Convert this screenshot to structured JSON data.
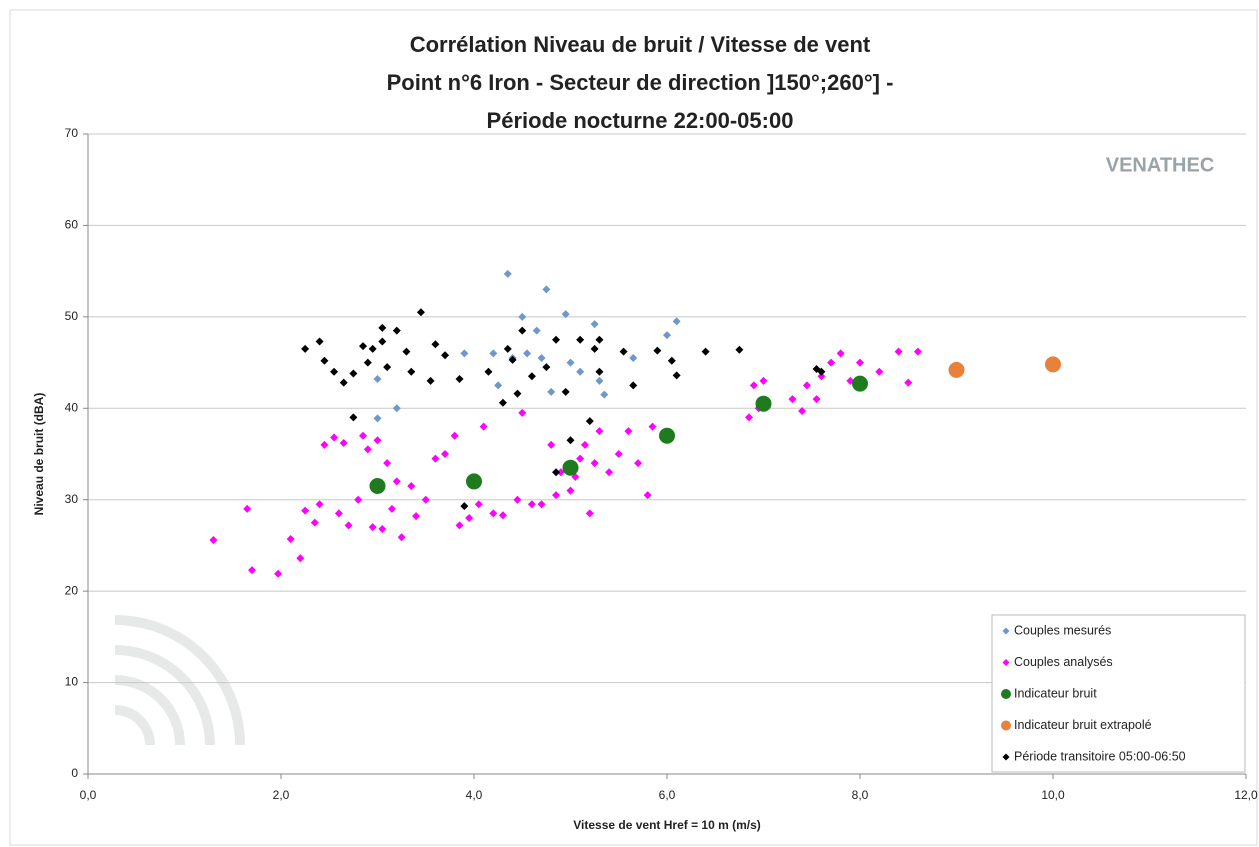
{
  "chart_data": {
    "type": "scatter",
    "title": [
      "Corrélation Niveau de bruit / Vitesse de vent",
      "Point n°6 Iron - Secteur de direction ]150°;260°] -",
      "Période nocturne 22:00-05:00"
    ],
    "logo": "VENATHEC",
    "xlabel": "Vitesse de vent Href = 10 m (m/s)",
    "ylabel": "Niveau de bruit (dBA)",
    "xlim": [
      0,
      12
    ],
    "ylim": [
      0,
      70
    ],
    "xticks": [
      {
        "value": 0,
        "label": "0,0"
      },
      {
        "value": 2,
        "label": "2,0"
      },
      {
        "value": 4,
        "label": "4,0"
      },
      {
        "value": 6,
        "label": "6,0"
      },
      {
        "value": 8,
        "label": "8,0"
      },
      {
        "value": 10,
        "label": "10,0"
      },
      {
        "value": 12,
        "label": "12,0"
      }
    ],
    "yticks": [
      0,
      10,
      20,
      30,
      40,
      50,
      60,
      70
    ],
    "grid": true,
    "legend": "lower right",
    "series": [
      {
        "name": "Couples mesurés",
        "color": "#6f97cf",
        "marker": "diamond",
        "x": [
          4.35,
          4.75,
          4.95,
          4.5,
          5.25,
          6.1,
          6.0,
          4.65,
          3.9,
          4.2,
          4.4,
          4.55,
          4.7,
          5.0,
          5.1,
          5.3,
          4.25,
          4.8,
          3.0,
          3.2,
          3.0,
          5.65,
          5.35
        ],
        "values": [
          54.7,
          53,
          50.3,
          50,
          49.2,
          49.5,
          48,
          48.5,
          46,
          46,
          45.5,
          46,
          45.5,
          45,
          44,
          43,
          42.5,
          41.8,
          43.2,
          40,
          38.9,
          45.5,
          41.5
        ]
      },
      {
        "name": "Couples analysés",
        "color": "#ff00ff",
        "marker": "diamond",
        "x": [
          1.3,
          1.65,
          1.7,
          1.97,
          2.1,
          2.2,
          2.25,
          2.4,
          2.45,
          2.55,
          2.6,
          2.65,
          2.7,
          2.8,
          2.85,
          2.9,
          2.95,
          3.0,
          3.05,
          3.1,
          3.15,
          3.2,
          3.25,
          3.35,
          3.5,
          3.6,
          3.7,
          3.8,
          3.85,
          3.95,
          4.05,
          4.1,
          4.2,
          4.3,
          4.45,
          4.5,
          4.6,
          4.8,
          4.85,
          4.9,
          5.0,
          5.1,
          5.15,
          5.2,
          5.3,
          5.4,
          5.5,
          5.6,
          5.7,
          5.8,
          5.85,
          6.9,
          6.95,
          7.0,
          7.3,
          7.45,
          7.6,
          7.7,
          7.8,
          7.9,
          8.0,
          8.2,
          8.4,
          8.5,
          8.6,
          5.05,
          5.25,
          2.35,
          3.4,
          4.7,
          6.85,
          7.4,
          7.55
        ],
        "values": [
          25.6,
          29,
          22.3,
          21.9,
          25.7,
          23.6,
          28.8,
          29.5,
          36,
          36.8,
          28.5,
          36.2,
          27.2,
          30,
          37,
          35.5,
          27,
          36.5,
          26.8,
          34,
          29,
          32,
          25.9,
          31.5,
          30,
          34.5,
          35,
          37,
          27.2,
          28,
          29.5,
          38,
          28.5,
          28.3,
          30,
          39.5,
          29.5,
          36,
          30.5,
          33,
          31,
          34.5,
          36,
          28.5,
          37.5,
          33,
          35,
          37.5,
          34,
          30.5,
          38,
          42.5,
          40,
          43,
          41,
          42.5,
          43.5,
          45,
          46,
          43,
          45,
          44,
          46.2,
          42.8,
          46.2,
          32.5,
          34,
          27.5,
          28.2,
          29.5,
          39,
          39.7,
          41
        ]
      },
      {
        "name": "Indicateur bruit",
        "color": "#1e7b1e",
        "marker": "circle",
        "x": [
          3,
          4,
          5,
          6,
          7,
          8
        ],
        "values": [
          31.5,
          32,
          33.5,
          37,
          40.5,
          42.7
        ]
      },
      {
        "name": "Indicateur bruit extrapolé",
        "color": "#e8823a",
        "marker": "circle",
        "x": [
          9,
          10
        ],
        "values": [
          44.2,
          44.8
        ]
      },
      {
        "name": "Période transitoire 05:00-06:50",
        "color": "#000000",
        "marker": "diamond",
        "x": [
          2.25,
          2.4,
          2.45,
          2.55,
          2.65,
          2.75,
          2.75,
          2.85,
          2.9,
          2.95,
          3.05,
          3.05,
          3.1,
          3.2,
          3.3,
          3.35,
          3.45,
          3.55,
          3.6,
          3.7,
          3.85,
          3.9,
          4.15,
          4.3,
          4.35,
          4.4,
          4.5,
          4.45,
          4.6,
          4.75,
          4.85,
          4.85,
          4.95,
          5.0,
          5.1,
          5.2,
          5.25,
          5.3,
          5.3,
          5.55,
          5.65,
          5.9,
          6.05,
          6.1,
          6.4,
          6.75,
          7.55,
          7.6
        ],
        "values": [
          46.5,
          47.3,
          45.2,
          44,
          42.8,
          43.8,
          39,
          46.8,
          45,
          46.5,
          48.8,
          47.3,
          44.5,
          48.5,
          46.2,
          44,
          50.5,
          43,
          47,
          45.8,
          43.2,
          29.3,
          44,
          40.6,
          46.5,
          45.3,
          48.5,
          41.6,
          43.5,
          44.5,
          47.5,
          33,
          41.8,
          36.5,
          47.5,
          38.6,
          46.5,
          47.5,
          44,
          46.2,
          42.5,
          46.3,
          45.2,
          43.6,
          46.2,
          46.4,
          44.3,
          44
        ]
      }
    ]
  }
}
